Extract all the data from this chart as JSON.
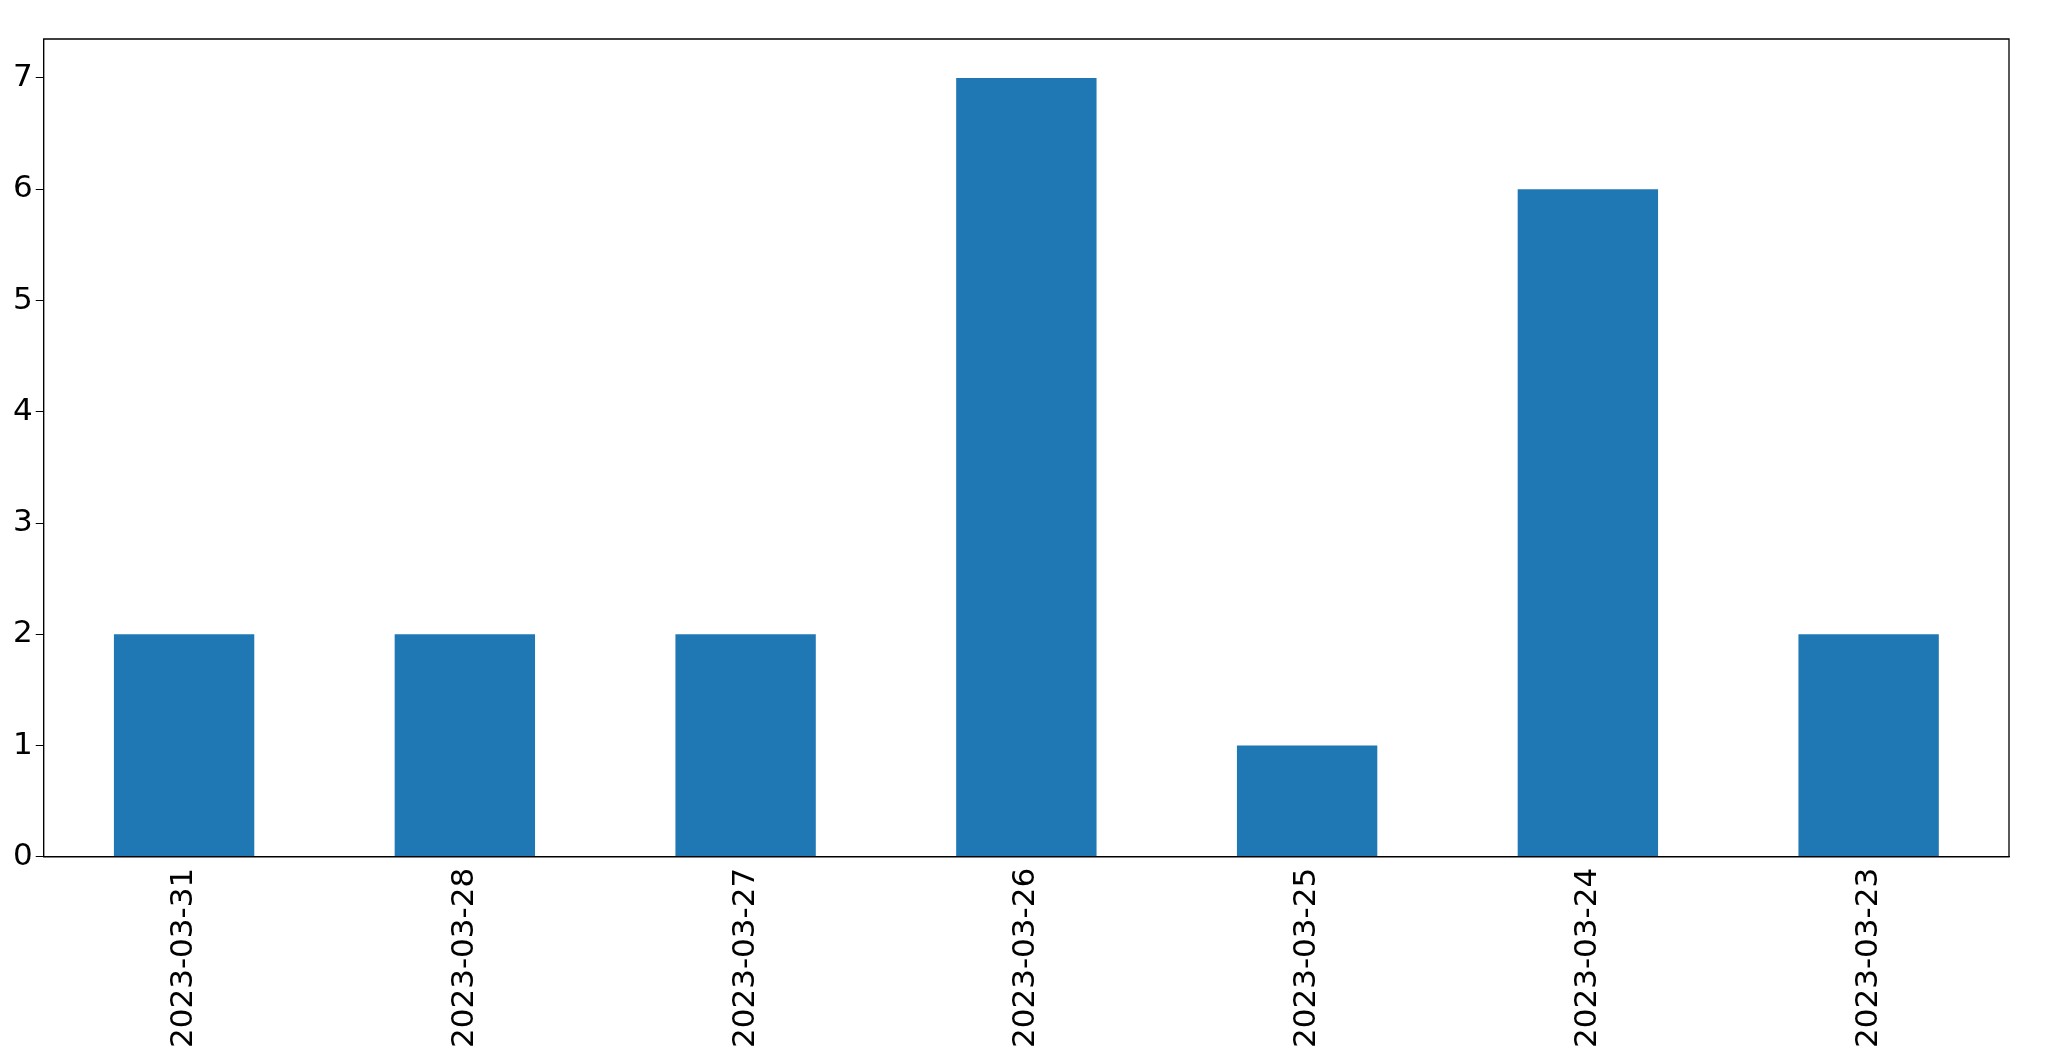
{
  "chart_data": {
    "type": "bar",
    "categories": [
      "2023-03-31",
      "2023-03-28",
      "2023-03-27",
      "2023-03-26",
      "2023-03-25",
      "2023-03-24",
      "2023-03-23"
    ],
    "values": [
      2,
      2,
      2,
      7,
      1,
      6,
      2
    ],
    "color": "#1f77b4",
    "ylim": [
      0,
      7.35
    ],
    "yticks": [
      0,
      1,
      2,
      3,
      4,
      5,
      6,
      7
    ],
    "grid": false,
    "legend": false
  }
}
